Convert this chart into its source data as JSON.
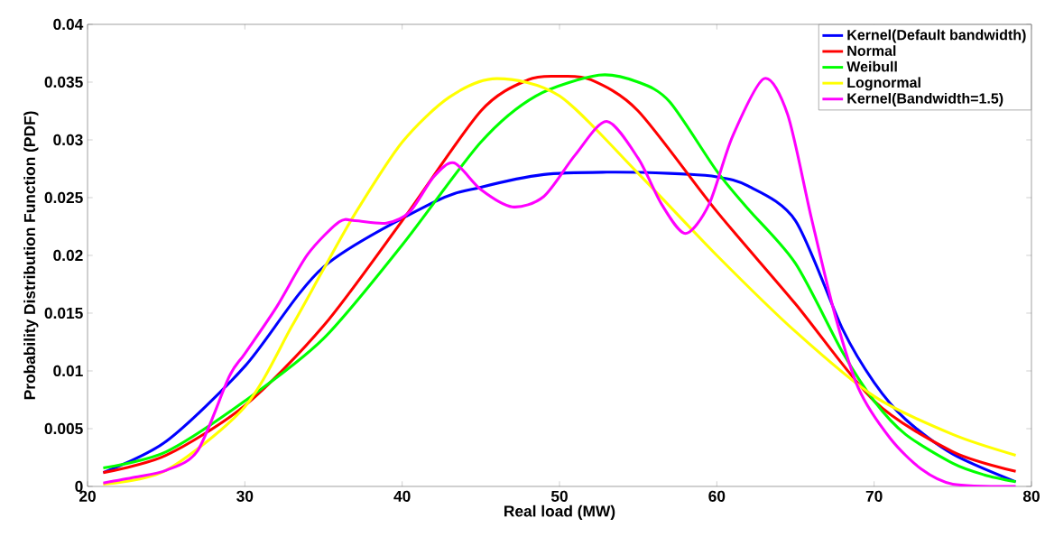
{
  "chart_data": {
    "type": "line",
    "xlabel": "Real load (MW)",
    "ylabel": "Probability Distribution Function (PDF)",
    "xlim": [
      20,
      80
    ],
    "xticks": [
      20,
      30,
      40,
      50,
      60,
      70,
      80
    ],
    "ylim": [
      0,
      0.04
    ],
    "yticks": [
      0,
      0.005,
      0.01,
      0.015,
      0.02,
      0.025,
      0.03,
      0.035,
      0.04
    ],
    "grid": false,
    "legend": "top right",
    "line_style": "solid",
    "series": [
      {
        "name": "Kernel(Default bandwidth)",
        "color": "#0000ff",
        "x": [
          21,
          25,
          30,
          35,
          42,
          45,
          49,
          53,
          57,
          60,
          62,
          65,
          68,
          70,
          72,
          75,
          79
        ],
        "values": [
          0.0012,
          0.0039,
          0.0104,
          0.019,
          0.0246,
          0.0259,
          0.027,
          0.0272,
          0.0271,
          0.0268,
          0.026,
          0.023,
          0.0136,
          0.009,
          0.0058,
          0.0028,
          0.0004
        ]
      },
      {
        "name": "Normal",
        "color": "#ff0000",
        "x": [
          21,
          25,
          30,
          35,
          40,
          45,
          48,
          50,
          52,
          55,
          60,
          65,
          70,
          75,
          79
        ],
        "values": [
          0.0012,
          0.0027,
          0.007,
          0.0139,
          0.023,
          0.0325,
          0.0352,
          0.0355,
          0.0352,
          0.0325,
          0.0238,
          0.0158,
          0.0074,
          0.003,
          0.0013
        ]
      },
      {
        "name": "Weibull",
        "color": "#00ff00",
        "x": [
          21,
          25,
          30,
          35,
          40,
          45,
          48.5,
          52.5,
          55,
          57,
          60,
          62,
          65,
          68,
          70,
          72,
          75,
          77,
          79
        ],
        "values": [
          0.0016,
          0.003,
          0.0074,
          0.0128,
          0.0209,
          0.0298,
          0.0338,
          0.0356,
          0.035,
          0.0333,
          0.0273,
          0.024,
          0.0193,
          0.0116,
          0.0074,
          0.0045,
          0.002,
          0.001,
          0.0004
        ]
      },
      {
        "name": "Lognormal",
        "color": "#ffff00",
        "x": [
          21,
          25,
          30,
          33,
          35,
          37,
          40,
          43,
          46,
          50,
          55,
          60,
          65,
          70,
          75,
          79
        ],
        "values": [
          0.0002,
          0.0014,
          0.0069,
          0.0139,
          0.0188,
          0.0236,
          0.0298,
          0.0337,
          0.0353,
          0.0338,
          0.0271,
          0.02,
          0.0134,
          0.0078,
          0.0045,
          0.0027
        ]
      },
      {
        "name": "Kernel(Bandwidth=1.5)",
        "color": "#ff00ff",
        "x": [
          21,
          23,
          25,
          27,
          29,
          30,
          32,
          34,
          36,
          37,
          39,
          40.5,
          42,
          43.3,
          45,
          47,
          49,
          51,
          53,
          55,
          56.5,
          58,
          59.5,
          61,
          63,
          64.5,
          66,
          67.5,
          69,
          71,
          73,
          75,
          79
        ],
        "values": [
          0.0003,
          0.0008,
          0.0014,
          0.0031,
          0.0095,
          0.0115,
          0.0155,
          0.0201,
          0.0229,
          0.023,
          0.0228,
          0.0238,
          0.0268,
          0.028,
          0.0257,
          0.0242,
          0.0251,
          0.0287,
          0.0316,
          0.0284,
          0.0244,
          0.0219,
          0.0244,
          0.0303,
          0.0353,
          0.0322,
          0.0233,
          0.0149,
          0.0085,
          0.0042,
          0.0015,
          0.0002,
          0
        ]
      }
    ]
  }
}
